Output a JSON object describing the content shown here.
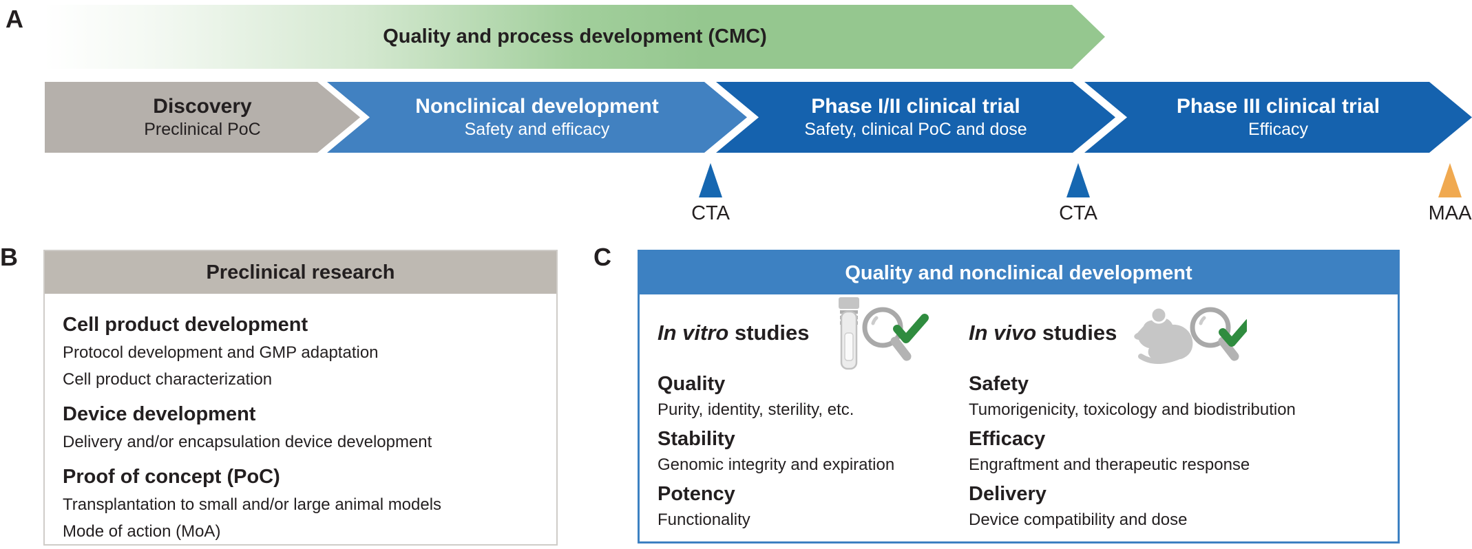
{
  "panel_a": {
    "label": "A",
    "cmc_arrow_title": "Quality and process development (CMC)",
    "stages": [
      {
        "title": "Discovery",
        "subtitle": "Preclinical PoC",
        "color": "#b5b0ab",
        "text_color": "#231f20"
      },
      {
        "title": "Nonclinical development",
        "subtitle": "Safety and efficacy",
        "color": "#4181c1",
        "text_color": "#ffffff"
      },
      {
        "title": "Phase I/II clinical trial",
        "subtitle": "Safety, clinical PoC and dose",
        "color": "#1562ae",
        "text_color": "#ffffff"
      },
      {
        "title": "Phase III clinical trial",
        "subtitle": "Efficacy",
        "color": "#1562ae",
        "text_color": "#ffffff"
      }
    ],
    "milestones": [
      {
        "label": "CTA",
        "color": "#1667b1"
      },
      {
        "label": "CTA",
        "color": "#1667b1"
      },
      {
        "label": "MAA",
        "color": "#f0a950"
      }
    ]
  },
  "panel_b": {
    "label": "B",
    "header": "Preclinical research",
    "sections": [
      {
        "heading": "Cell product development",
        "lines": [
          "Protocol development and GMP adaptation",
          "Cell product characterization"
        ]
      },
      {
        "heading": "Device development",
        "lines": [
          "Delivery and/or encapsulation device development"
        ]
      },
      {
        "heading": "Proof of concept (PoC)",
        "lines": [
          "Transplantation to small and/or large animal models",
          "Mode of action (MoA)"
        ]
      }
    ]
  },
  "panel_c": {
    "label": "C",
    "header": "Quality and nonclinical development",
    "columns": [
      {
        "title_italic": "In vitro",
        "title_rest": " studies",
        "icon": "test-tube-magnifier-check-icon",
        "sections": [
          {
            "heading": "Quality",
            "lines": [
              "Purity, identity, sterility, etc."
            ]
          },
          {
            "heading": "Stability",
            "lines": [
              "Genomic integrity and expiration"
            ]
          },
          {
            "heading": "Potency",
            "lines": [
              "Functionality"
            ]
          }
        ]
      },
      {
        "title_italic": "In vivo",
        "title_rest": " studies",
        "icon": "mouse-magnifier-check-icon",
        "sections": [
          {
            "heading": "Safety",
            "lines": [
              "Tumorigenicity, toxicology and biodistribution"
            ]
          },
          {
            "heading": "Efficacy",
            "lines": [
              "Engraftment and therapeutic response"
            ]
          },
          {
            "heading": "Delivery",
            "lines": [
              "Device compatibility and dose"
            ]
          }
        ]
      }
    ]
  },
  "colors": {
    "cmc_green": "#95c78f",
    "gray_stage": "#b5b0ab",
    "light_blue_stage": "#4181c1",
    "dark_blue_stage": "#1562ae",
    "cta_triangle_blue": "#1667b1",
    "maa_triangle_orange": "#f0a950",
    "panel_b_header_gray": "#beb9b2",
    "panel_c_blue": "#3d81c2",
    "check_green": "#2f8c3f",
    "icon_gray": "#c6c6c6",
    "text_dark": "#231f20"
  }
}
